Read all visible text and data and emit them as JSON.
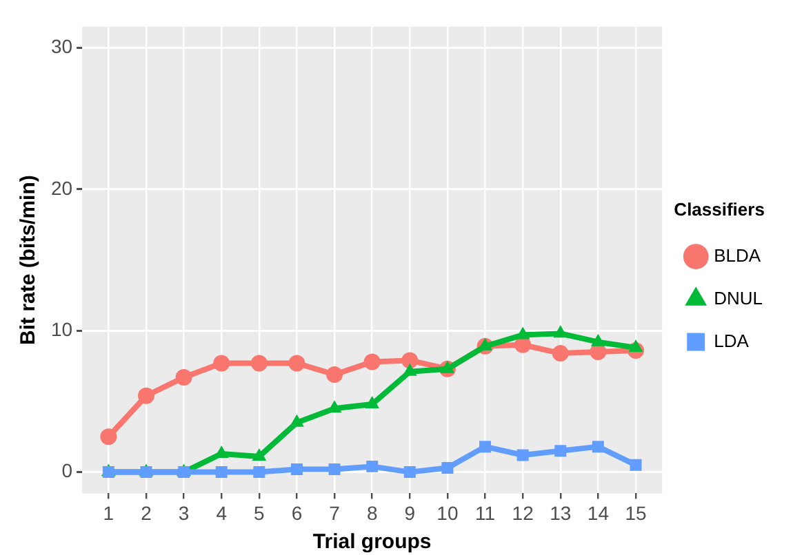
{
  "chart_data": {
    "type": "line",
    "xlabel": "Trial groups",
    "ylabel": "Bit rate (bits/min)",
    "legend_title": "Classifiers",
    "legend": "right",
    "grid": true,
    "line_style": "solid",
    "x": [
      1,
      2,
      3,
      4,
      5,
      6,
      7,
      8,
      9,
      10,
      11,
      12,
      13,
      14,
      15
    ],
    "xlim": [
      0.3,
      15.7
    ],
    "xticks": [
      1,
      2,
      3,
      4,
      5,
      6,
      7,
      8,
      9,
      10,
      11,
      12,
      13,
      14,
      15
    ],
    "ylim": [
      -1.5,
      31.5
    ],
    "yticks": [
      0,
      10,
      20,
      30
    ],
    "series": [
      {
        "name": "BLDA",
        "color": "#f8766d",
        "marker": "circle",
        "values": [
          2.5,
          5.4,
          6.7,
          7.7,
          7.7,
          7.7,
          6.9,
          7.8,
          7.9,
          7.3,
          8.9,
          9.0,
          8.4,
          8.5,
          8.6
        ]
      },
      {
        "name": "DNUL",
        "color": "#00ba38",
        "marker": "triangle",
        "values": [
          0,
          0,
          0,
          1.3,
          1.1,
          3.5,
          4.5,
          4.8,
          7.1,
          7.3,
          8.9,
          9.7,
          9.8,
          9.2,
          8.8
        ]
      },
      {
        "name": "LDA",
        "color": "#619cff",
        "marker": "square",
        "values": [
          0,
          0,
          0,
          0,
          0,
          0.2,
          0.2,
          0.4,
          0,
          0.3,
          1.8,
          1.2,
          1.5,
          1.8,
          0.5
        ]
      }
    ]
  }
}
